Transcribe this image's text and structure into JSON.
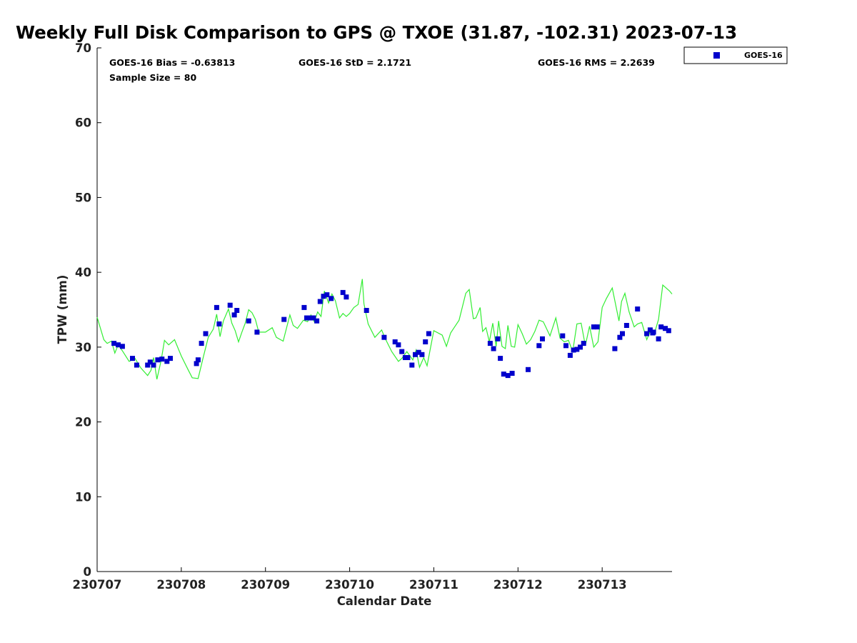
{
  "chart_data": {
    "type": "scatter",
    "title": "Weekly Full Disk Comparison to GPS @ TXOE (31.87, -102.31) 2023-07-13",
    "xlabel": "Calendar Date",
    "ylabel": "TPW (mm)",
    "xlim": [
      230707,
      230713.83
    ],
    "ylim": [
      0,
      70
    ],
    "x_ticks": [
      230707,
      230708,
      230709,
      230710,
      230711,
      230712,
      230713
    ],
    "x_tick_labels": [
      "230707",
      "230708",
      "230709",
      "230710",
      "230711",
      "230712",
      "230713"
    ],
    "y_ticks": [
      0,
      10,
      20,
      30,
      40,
      50,
      60,
      70
    ],
    "y_tick_labels": [
      "0",
      "10",
      "20",
      "30",
      "40",
      "50",
      "60",
      "70"
    ],
    "grid": false,
    "legend_position": "top-right",
    "stats": {
      "bias": "GOES-16 Bias = -0.63813",
      "std": "GOES-16 StD = 2.1721",
      "rms": "GOES-16 RMS = 2.2639",
      "sample_size": "Sample Size = 80"
    },
    "series": [
      {
        "name": "GOES-16",
        "kind": "scatter",
        "marker": "square",
        "color": "#0000cc",
        "x": [
          230707.2,
          230707.25,
          230707.3,
          230707.42,
          230707.47,
          230707.6,
          230707.63,
          230707.67,
          230707.72,
          230707.77,
          230707.83,
          230707.87,
          230708.18,
          230708.2,
          230708.24,
          230708.29,
          230708.42,
          230708.45,
          230708.58,
          230708.63,
          230708.66,
          230708.8,
          230708.9,
          230709.22,
          230709.46,
          230709.49,
          230709.53,
          230709.57,
          230709.61,
          230709.65,
          230709.69,
          230709.73,
          230709.78,
          230709.92,
          230709.96,
          230710.2,
          230710.41,
          230710.54,
          230710.58,
          230710.62,
          230710.66,
          230710.69,
          230710.74,
          230710.78,
          230710.82,
          230710.86,
          230710.9,
          230710.94,
          230711.67,
          230711.71,
          230711.76,
          230711.79,
          230711.83,
          230711.88,
          230711.93,
          230712.12,
          230712.25,
          230712.29,
          230712.53,
          230712.57,
          230712.62,
          230712.66,
          230712.7,
          230712.74,
          230712.78,
          230712.9,
          230712.94,
          230713.15,
          230713.21,
          230713.24,
          230713.29,
          230713.42,
          230713.53,
          230713.57,
          230713.6,
          230713.67,
          230713.7,
          230713.75,
          230713.79,
          230713.61
        ],
        "y": [
          30.5,
          30.3,
          30.1,
          28.5,
          27.6,
          27.6,
          28.0,
          27.6,
          28.3,
          28.4,
          28.1,
          28.5,
          27.8,
          28.3,
          30.5,
          31.8,
          35.3,
          33.1,
          35.6,
          34.3,
          34.9,
          33.5,
          32.0,
          33.7,
          35.3,
          33.9,
          33.9,
          33.9,
          33.5,
          36.1,
          36.8,
          37.0,
          36.5,
          37.3,
          36.7,
          34.9,
          31.3,
          30.7,
          30.3,
          29.4,
          28.6,
          28.6,
          27.6,
          29.0,
          29.3,
          29.0,
          30.7,
          31.8,
          30.5,
          29.8,
          31.1,
          28.5,
          26.4,
          26.2,
          26.5,
          27.0,
          30.2,
          31.1,
          31.5,
          30.2,
          28.9,
          29.6,
          29.7,
          30.0,
          30.5,
          32.7,
          32.7,
          29.8,
          31.3,
          31.8,
          32.9,
          35.1,
          31.8,
          32.3,
          31.9,
          31.1,
          32.7,
          32.5,
          32.2,
          32.0
        ]
      },
      {
        "name": "",
        "kind": "line",
        "color": "#33ee33",
        "x": [
          230707.0,
          230707.08,
          230707.12,
          230707.17,
          230707.21,
          230707.25,
          230707.3,
          230707.38,
          230707.45,
          230707.52,
          230707.6,
          230707.64,
          230707.67,
          230707.71,
          230707.76,
          230707.8,
          230707.85,
          230707.92,
          230708.0,
          230708.08,
          230708.13,
          230708.2,
          230708.26,
          230708.32,
          230708.38,
          230708.42,
          230708.46,
          230708.5,
          230708.56,
          230708.6,
          230708.64,
          230708.68,
          230708.72,
          230708.76,
          230708.8,
          230708.84,
          230708.88,
          230708.92,
          230709.0,
          230709.08,
          230709.13,
          230709.21,
          230709.29,
          230709.33,
          230709.38,
          230709.45,
          230709.5,
          230709.54,
          230709.58,
          230709.62,
          230709.66,
          230709.7,
          230709.75,
          230709.79,
          230709.83,
          230709.88,
          230709.92,
          230709.96,
          230710.0,
          230710.05,
          230710.1,
          230710.15,
          230710.17,
          230710.22,
          230710.3,
          230710.38,
          230710.42,
          230710.5,
          230710.58,
          230710.62,
          230710.68,
          230710.75,
          230710.79,
          230710.83,
          230710.88,
          230710.92,
          230711.0,
          230711.1,
          230711.15,
          230711.2,
          230711.3,
          230711.38,
          230711.42,
          230711.47,
          230711.5,
          230711.55,
          230711.58,
          230711.62,
          230711.66,
          230711.7,
          230711.74,
          230711.77,
          230711.81,
          230711.85,
          230711.88,
          230711.92,
          230711.96,
          230712.0,
          230712.05,
          230712.1,
          230712.15,
          230712.2,
          230712.25,
          230712.3,
          230712.38,
          230712.45,
          230712.5,
          230712.55,
          230712.6,
          230712.65,
          230712.7,
          230712.75,
          230712.8,
          230712.85,
          230712.9,
          230712.95,
          230713.0,
          230713.05,
          230713.12,
          230713.2,
          230713.23,
          230713.27,
          230713.32,
          230713.38,
          230713.42,
          230713.47,
          230713.53,
          230713.58,
          230713.62,
          230713.67,
          230713.72,
          230713.76,
          230713.8,
          230713.83
        ],
        "y": [
          34,
          31,
          30.5,
          30.8,
          29.2,
          30.3,
          29.5,
          28.1,
          28.5,
          27.2,
          26.2,
          26.9,
          28.6,
          25.7,
          28.2,
          30.9,
          30.3,
          31.0,
          28.8,
          27.0,
          25.9,
          25.8,
          28.6,
          31.3,
          32.4,
          34.4,
          31.4,
          33.5,
          35.1,
          33.2,
          32.2,
          30.7,
          32.0,
          33.2,
          35.0,
          34.6,
          33.7,
          32.0,
          32.0,
          32.6,
          31.3,
          30.8,
          34.3,
          32.9,
          32.5,
          33.6,
          33.4,
          34.3,
          33.4,
          34.7,
          34.1,
          37.5,
          35.9,
          37.1,
          36.2,
          33.9,
          34.5,
          34.1,
          34.5,
          35.3,
          35.7,
          39.1,
          35.8,
          33.1,
          31.3,
          32.3,
          31.2,
          29.4,
          28.1,
          28.5,
          29.4,
          28.3,
          29.6,
          27.3,
          28.6,
          27.5,
          32.2,
          31.6,
          30.1,
          31.9,
          33.6,
          37.2,
          37.7,
          33.8,
          33.9,
          35.3,
          32.1,
          32.6,
          30.7,
          33.2,
          30.1,
          33.5,
          30.1,
          29.8,
          32.9,
          30.1,
          30.0,
          33.0,
          31.8,
          30.4,
          31.0,
          32.1,
          33.6,
          33.4,
          31.5,
          33.9,
          31.2,
          30.7,
          30.9,
          29.4,
          33.1,
          33.2,
          30.2,
          32.8,
          30.0,
          30.7,
          35.3,
          36.5,
          37.9,
          33.5,
          36.1,
          37.2,
          34.7,
          32.7,
          33.1,
          33.3,
          31.0,
          32.3,
          31.8,
          33.7,
          38.3,
          37.9,
          37.5,
          37.1
        ]
      }
    ]
  }
}
